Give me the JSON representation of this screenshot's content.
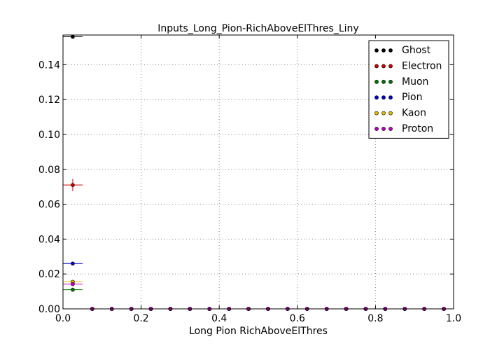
{
  "chart_data": {
    "type": "scatter",
    "title": "Inputs_Long_Pion-RichAboveElThres_Liny",
    "xlabel": "Long Pion RichAboveElThres",
    "ylabel": "",
    "xlim": [
      0.0,
      1.0
    ],
    "ylim": [
      0.0,
      0.157
    ],
    "xticks": [
      0.0,
      0.2,
      0.4,
      0.6,
      0.8,
      1.0
    ],
    "xtick_labels": [
      "0.0",
      "0.2",
      "0.4",
      "0.6",
      "0.8",
      "1.0"
    ],
    "yticks": [
      0.0,
      0.02,
      0.04,
      0.06,
      0.08,
      0.1,
      0.12,
      0.14
    ],
    "ytick_labels": [
      "0.00",
      "0.02",
      "0.04",
      "0.06",
      "0.08",
      "0.10",
      "0.12",
      "0.14"
    ],
    "grid": true,
    "legend_position": "top-right",
    "bin_width": 0.05,
    "x": [
      0.025,
      0.075,
      0.125,
      0.175,
      0.225,
      0.275,
      0.325,
      0.375,
      0.425,
      0.475,
      0.525,
      0.575,
      0.625,
      0.675,
      0.725,
      0.775,
      0.825,
      0.875,
      0.925,
      0.975
    ],
    "series": [
      {
        "name": "Ghost",
        "color": "#000000",
        "values": [
          0.156,
          0,
          0,
          0,
          0,
          0,
          0,
          0,
          0,
          0,
          0,
          0,
          0,
          0,
          0,
          0,
          0,
          0,
          0,
          0
        ],
        "yerr": [
          0.001,
          0,
          0,
          0,
          0,
          0,
          0,
          0,
          0,
          0,
          0,
          0,
          0,
          0,
          0,
          0,
          0,
          0,
          0,
          0
        ]
      },
      {
        "name": "Electron",
        "color": "#cc0000",
        "values": [
          0.071,
          0,
          0,
          0,
          0,
          0,
          0,
          0,
          0,
          0,
          0,
          0,
          0,
          0,
          0,
          0,
          0,
          0,
          0,
          0
        ],
        "yerr": [
          0.0035,
          0,
          0,
          0,
          0,
          0,
          0,
          0,
          0,
          0,
          0,
          0,
          0,
          0,
          0,
          0,
          0,
          0,
          0,
          0
        ]
      },
      {
        "name": "Muon",
        "color": "#007700",
        "values": [
          0.011,
          0,
          0,
          0,
          0,
          0,
          0,
          0,
          0,
          0,
          0,
          0,
          0,
          0,
          0,
          0,
          0,
          0,
          0,
          0
        ],
        "yerr": [
          0.0006,
          0,
          0,
          0,
          0,
          0,
          0,
          0,
          0,
          0,
          0,
          0,
          0,
          0,
          0,
          0,
          0,
          0,
          0,
          0
        ]
      },
      {
        "name": "Pion",
        "color": "#0000cc",
        "values": [
          0.026,
          0,
          0,
          0,
          0,
          0,
          0,
          0,
          0,
          0,
          0,
          0,
          0,
          0,
          0,
          0,
          0,
          0,
          0,
          0
        ],
        "yerr": [
          0.0004,
          0,
          0,
          0,
          0,
          0,
          0,
          0,
          0,
          0,
          0,
          0,
          0,
          0,
          0,
          0,
          0,
          0,
          0,
          0
        ]
      },
      {
        "name": "Kaon",
        "color": "#ddbb00",
        "values": [
          0.0155,
          0,
          0,
          0,
          0,
          0,
          0,
          0,
          0,
          0,
          0,
          0,
          0,
          0,
          0,
          0,
          0,
          0,
          0,
          0
        ],
        "yerr": [
          0.0005,
          0,
          0,
          0,
          0,
          0,
          0,
          0,
          0,
          0,
          0,
          0,
          0,
          0,
          0,
          0,
          0,
          0,
          0,
          0
        ]
      },
      {
        "name": "Proton",
        "color": "#bb00bb",
        "values": [
          0.0142,
          0,
          0,
          0,
          0,
          0,
          0,
          0,
          0,
          0,
          0,
          0,
          0,
          0,
          0,
          0,
          0,
          0,
          0,
          0
        ],
        "yerr": [
          0.0005,
          0,
          0,
          0,
          0,
          0,
          0,
          0,
          0,
          0,
          0,
          0,
          0,
          0,
          0,
          0,
          0,
          0,
          0,
          0
        ]
      }
    ]
  }
}
